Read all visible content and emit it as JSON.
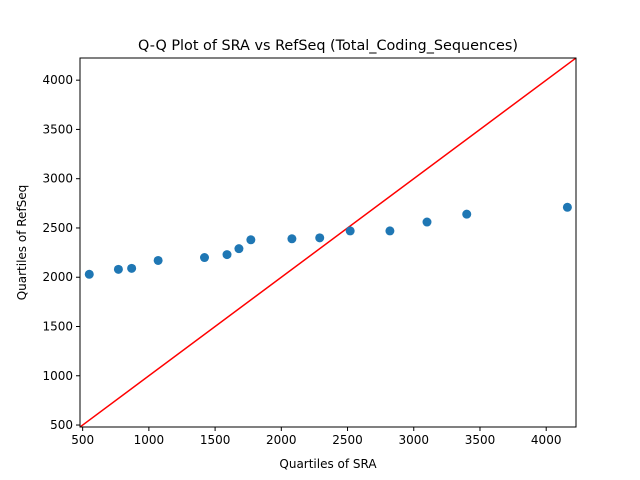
{
  "chart_data": {
    "type": "scatter",
    "title": "Q-Q Plot of SRA vs RefSeq (Total_Coding_Sequences)",
    "xlabel": "Quartiles of SRA",
    "ylabel": "Quartiles of RefSeq",
    "xlim": [
      480,
      4225
    ],
    "ylim": [
      480,
      4225
    ],
    "xticks": [
      500,
      1000,
      1500,
      2000,
      2500,
      3000,
      3500,
      4000
    ],
    "yticks": [
      500,
      1000,
      1500,
      2000,
      2500,
      3000,
      3500,
      4000
    ],
    "grid": false,
    "series": [
      {
        "marker": "circle",
        "color": "#1f77b4",
        "points": [
          {
            "x": 550,
            "y": 2030
          },
          {
            "x": 770,
            "y": 2080
          },
          {
            "x": 870,
            "y": 2090
          },
          {
            "x": 1070,
            "y": 2170
          },
          {
            "x": 1420,
            "y": 2200
          },
          {
            "x": 1590,
            "y": 2230
          },
          {
            "x": 1680,
            "y": 2290
          },
          {
            "x": 1770,
            "y": 2380
          },
          {
            "x": 2080,
            "y": 2390
          },
          {
            "x": 2290,
            "y": 2400
          },
          {
            "x": 2520,
            "y": 2470
          },
          {
            "x": 2820,
            "y": 2470
          },
          {
            "x": 3100,
            "y": 2560
          },
          {
            "x": 3400,
            "y": 2640
          },
          {
            "x": 4160,
            "y": 2710
          }
        ]
      }
    ],
    "reference_line": {
      "color": "#ff0000",
      "from": [
        480,
        480
      ],
      "to": [
        4225,
        4225
      ]
    }
  }
}
